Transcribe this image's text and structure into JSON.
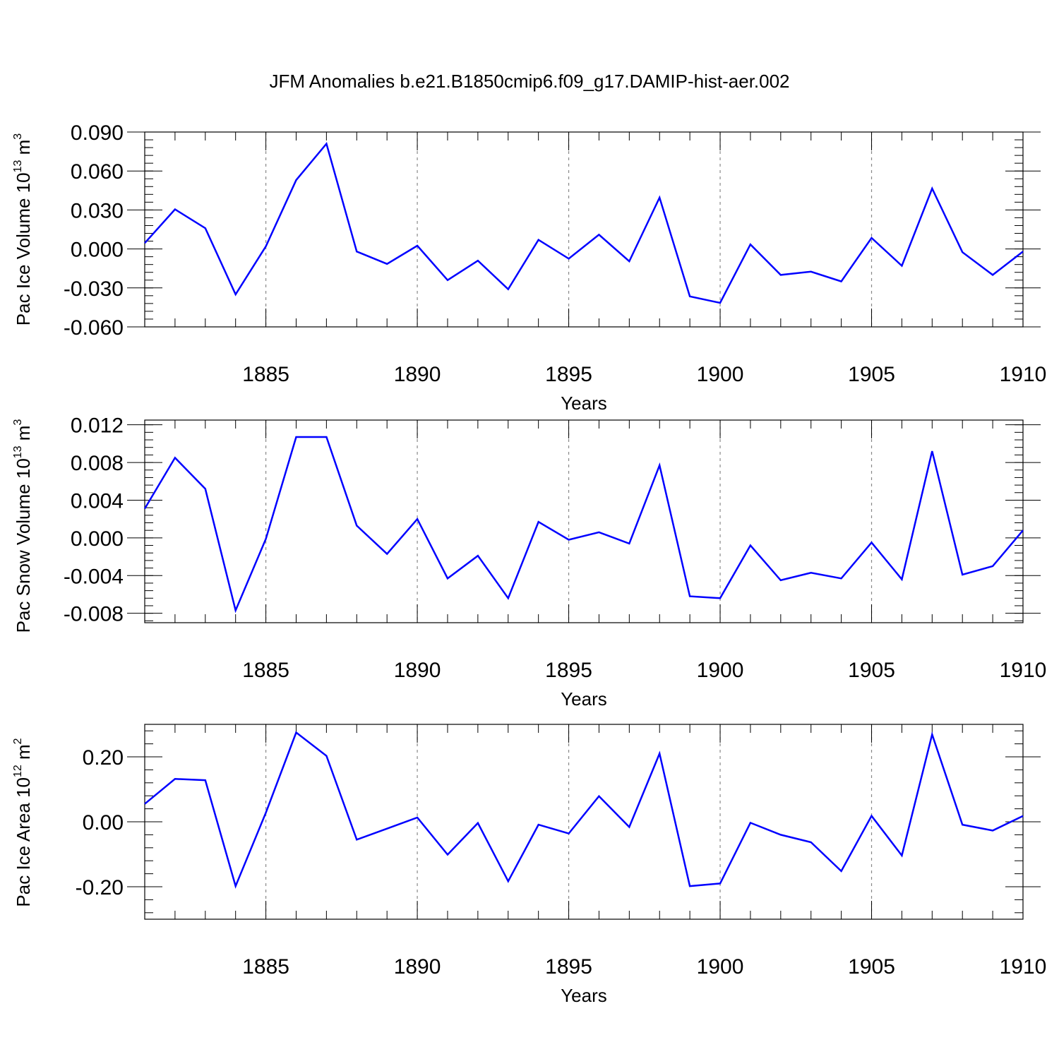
{
  "title": "JFM Anomalies b.e21.B1850cmip6.f09_g17.DAMIP-hist-aer.002",
  "colors": {
    "line": "#0000ff",
    "axis": "#000000",
    "grid": "#888888"
  },
  "chart_data": [
    {
      "type": "line",
      "ylabel": {
        "text": "Pac Ice Volume 10",
        "exp": "13",
        "unit": " m",
        "unit_exp": "3"
      },
      "xlabel": "Years",
      "xlim": [
        1881,
        1910
      ],
      "ylim": [
        -0.06,
        0.09
      ],
      "yticks": [
        -0.06,
        -0.03,
        0.0,
        0.03,
        0.06,
        0.09
      ],
      "ytick_labels": [
        "-0.060",
        "-0.030",
        "0.000",
        "0.030",
        "0.060",
        "0.090"
      ],
      "xticks": [
        1885,
        1890,
        1895,
        1900,
        1905,
        1910
      ],
      "xtick_labels": [
        "1885",
        "1890",
        "1895",
        "1900",
        "1905",
        "1910"
      ],
      "grid": "vertical dashed at major x ticks",
      "series": [
        {
          "name": "Pac Ice Volume",
          "x": [
            1881,
            1882,
            1883,
            1884,
            1885,
            1886,
            1887,
            1888,
            1889,
            1890,
            1891,
            1892,
            1893,
            1894,
            1895,
            1896,
            1897,
            1898,
            1899,
            1900,
            1901,
            1902,
            1903,
            1904,
            1905,
            1906,
            1907,
            1908,
            1909,
            1910
          ],
          "values": [
            0.0045,
            0.0305,
            0.016,
            -0.035,
            0.002,
            0.053,
            0.081,
            -0.002,
            -0.0115,
            0.0025,
            -0.024,
            -0.009,
            -0.031,
            0.007,
            -0.0075,
            0.011,
            -0.0095,
            0.0395,
            -0.0365,
            -0.0415,
            0.0035,
            -0.02,
            -0.0175,
            -0.025,
            0.0085,
            -0.013,
            0.0465,
            -0.0025,
            -0.02,
            -0.002
          ]
        }
      ]
    },
    {
      "type": "line",
      "ylabel": {
        "text": "Pac Snow Volume 10",
        "exp": "13",
        "unit": " m",
        "unit_exp": "3"
      },
      "xlabel": "Years",
      "xlim": [
        1881,
        1910
      ],
      "ylim": [
        -0.009,
        0.0125
      ],
      "yticks": [
        -0.008,
        -0.004,
        0.0,
        0.004,
        0.008,
        0.012
      ],
      "ytick_labels": [
        "-0.008",
        "-0.004",
        "0.000",
        "0.004",
        "0.008",
        "0.012"
      ],
      "xticks": [
        1885,
        1890,
        1895,
        1900,
        1905,
        1910
      ],
      "xtick_labels": [
        "1885",
        "1890",
        "1895",
        "1900",
        "1905",
        "1910"
      ],
      "grid": "vertical dashed at major x ticks",
      "series": [
        {
          "name": "Pac Snow Volume",
          "x": [
            1881,
            1882,
            1883,
            1884,
            1885,
            1886,
            1887,
            1888,
            1889,
            1890,
            1891,
            1892,
            1893,
            1894,
            1895,
            1896,
            1897,
            1898,
            1899,
            1900,
            1901,
            1902,
            1903,
            1904,
            1905,
            1906,
            1907,
            1908,
            1909,
            1910
          ],
          "values": [
            0.0031,
            0.0085,
            0.0052,
            -0.0077,
            -0.0001,
            0.0107,
            0.0107,
            0.0013,
            -0.0017,
            0.002,
            -0.0043,
            -0.0019,
            -0.0064,
            0.0017,
            -0.0002,
            0.0006,
            -0.0006,
            0.0077,
            -0.0062,
            -0.0064,
            -0.0008,
            -0.0045,
            -0.0037,
            -0.0043,
            -0.0005,
            -0.0044,
            0.0092,
            -0.0039,
            -0.003,
            0.0008
          ]
        }
      ]
    },
    {
      "type": "line",
      "ylabel": {
        "text": "Pac Ice Area 10",
        "exp": "12",
        "unit": " m",
        "unit_exp": "2"
      },
      "xlabel": "Years",
      "xlim": [
        1881,
        1910
      ],
      "ylim": [
        -0.3,
        0.3
      ],
      "yticks": [
        -0.2,
        0.0,
        0.2
      ],
      "ytick_labels": [
        "-0.20",
        "0.00",
        "0.20"
      ],
      "xticks": [
        1885,
        1890,
        1895,
        1900,
        1905,
        1910
      ],
      "xtick_labels": [
        "1885",
        "1890",
        "1895",
        "1900",
        "1905",
        "1910"
      ],
      "grid": "vertical dashed at major x ticks",
      "series": [
        {
          "name": "Pac Ice Area",
          "x": [
            1881,
            1882,
            1883,
            1884,
            1885,
            1886,
            1887,
            1888,
            1889,
            1890,
            1891,
            1892,
            1893,
            1894,
            1895,
            1896,
            1897,
            1898,
            1899,
            1900,
            1901,
            1902,
            1903,
            1904,
            1905,
            1906,
            1907,
            1908,
            1909,
            1910
          ],
          "values": [
            0.055,
            0.132,
            0.128,
            -0.198,
            0.028,
            0.275,
            0.203,
            -0.055,
            -0.021,
            0.013,
            -0.101,
            -0.004,
            -0.183,
            -0.009,
            -0.036,
            0.079,
            -0.016,
            0.21,
            -0.198,
            -0.19,
            -0.003,
            -0.04,
            -0.063,
            -0.152,
            0.018,
            -0.104,
            0.269,
            -0.009,
            -0.027,
            0.018
          ]
        }
      ]
    }
  ]
}
